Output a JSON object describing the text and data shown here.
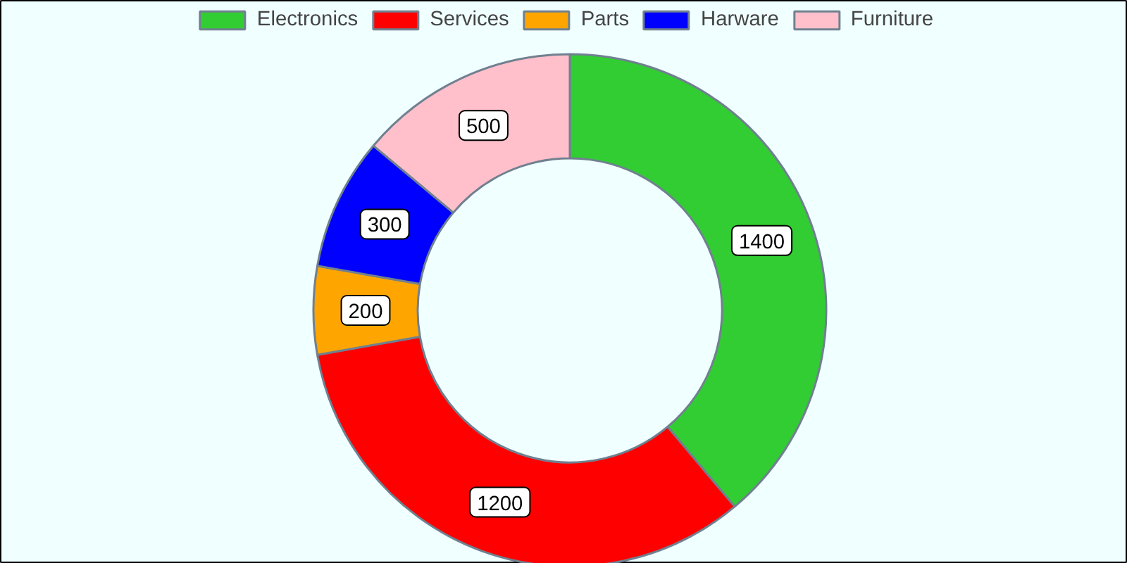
{
  "chart_data": {
    "type": "donut",
    "categories": [
      "Electronics",
      "Services",
      "Parts",
      "Harware",
      "Furniture"
    ],
    "values": [
      1400,
      1200,
      200,
      300,
      500
    ],
    "colors": [
      "#32cd32",
      "#ff0000",
      "#ffa500",
      "#0000ff",
      "#ffc0cb"
    ],
    "data_labels": true,
    "legend": "top"
  }
}
